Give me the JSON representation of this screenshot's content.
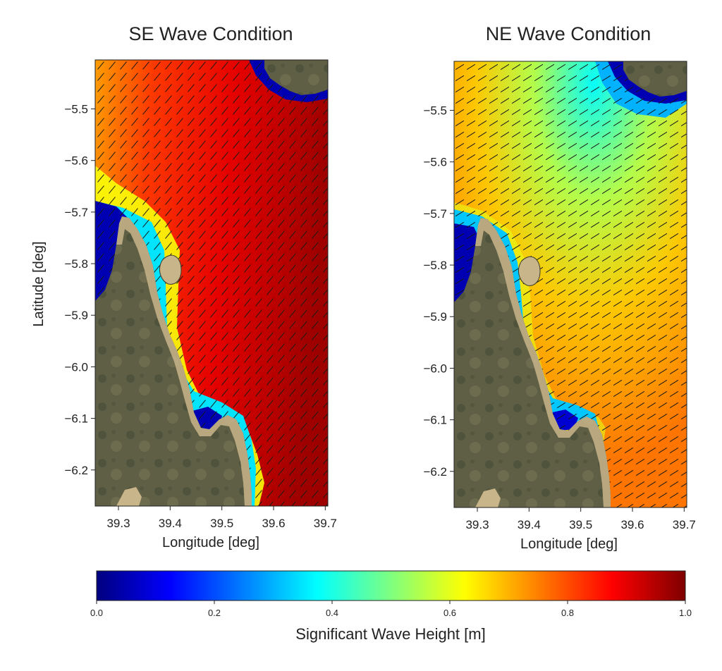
{
  "colors": {
    "land": "#5e5f45",
    "land_dark": "#4a4e38",
    "land_light": "#8a8460",
    "sand": "#c9b58a",
    "arrow": "#1a1a1a",
    "jet": [
      "#00007f",
      "#0000ff",
      "#007fff",
      "#00ffff",
      "#7fff7f",
      "#ffff00",
      "#ff7f00",
      "#ff0000",
      "#7f0000"
    ]
  },
  "chart_data": [
    {
      "type": "heatmap",
      "title": "SE Wave Condition",
      "xlabel": "Longitude [deg]",
      "ylabel": "Latitude [deg]",
      "xlim": [
        39.255,
        39.705
      ],
      "ylim": [
        -6.27,
        -5.405
      ],
      "xticks": [
        39.3,
        39.4,
        39.5,
        39.6,
        39.7
      ],
      "xtick_labels": [
        "39.3",
        "39.4",
        "39.5",
        "39.6",
        "39.7"
      ],
      "yticks": [
        -5.5,
        -5.6,
        -5.7,
        -5.8,
        -5.9,
        -6.0,
        -6.1,
        -6.2
      ],
      "ytick_labels": [
        "−5.5",
        "−5.6",
        "−5.7",
        "−5.8",
        "−5.9",
        "−6.0",
        "−6.1",
        "−6.2"
      ],
      "wave_direction": "SE",
      "wave_height_offshore": 0.97,
      "wave_height_nearshore": 0.82,
      "arrows": "black direction vectors on every grid cell"
    },
    {
      "type": "heatmap",
      "title": "NE Wave Condition",
      "xlabel": "Longitude [deg]",
      "ylabel": "",
      "xlim": [
        39.255,
        39.705
      ],
      "ylim": [
        -6.27,
        -5.405
      ],
      "xticks": [
        39.3,
        39.4,
        39.5,
        39.6,
        39.7
      ],
      "xtick_labels": [
        "39.3",
        "39.4",
        "39.5",
        "39.6",
        "39.7"
      ],
      "yticks": [
        -5.5,
        -5.6,
        -5.7,
        -5.8,
        -5.9,
        -6.0,
        -6.1,
        -6.2
      ],
      "ytick_labels": [
        "−5.5",
        "−5.6",
        "−5.7",
        "−5.8",
        "−5.9",
        "−6.0",
        "−6.1",
        "−6.2"
      ],
      "wave_direction": "NE",
      "wave_height_offshore": 0.76,
      "wave_height_sheltered": 0.55,
      "arrows": "black direction vectors on every grid cell"
    }
  ],
  "colorbar": {
    "label": "Significant Wave Height [m]",
    "min": 0.0,
    "max": 1.0,
    "ticks": [
      0.0,
      0.2,
      0.4,
      0.6,
      0.8,
      1.0
    ],
    "tick_labels": [
      "0.0",
      "0.2",
      "0.4",
      "0.6",
      "0.8",
      "1.0"
    ],
    "colormap": "jet"
  }
}
